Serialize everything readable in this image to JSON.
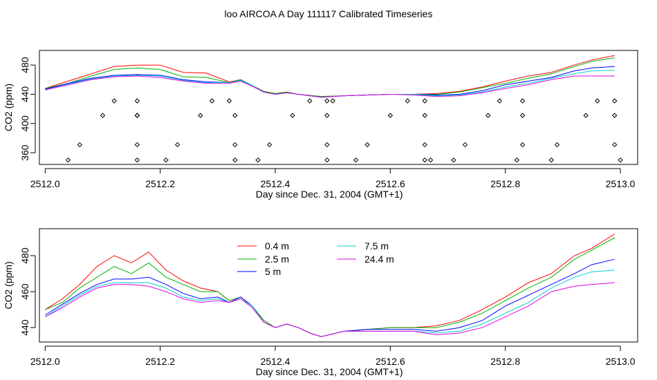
{
  "title": "loo AIRCOA A  Day 111117  Calibrated Timeseries",
  "chart_data": [
    {
      "type": "line",
      "xlabel": "Day since Dec. 31, 2004 (GMT+1)",
      "ylabel": "CO2 (ppm)",
      "xlim": [
        2511.99,
        2513.03
      ],
      "ylim": [
        344,
        500
      ],
      "xticks": [
        2512.0,
        2512.2,
        2512.4,
        2512.6,
        2512.8,
        2513.0
      ],
      "xtick_labels": [
        "2512.0",
        "2512.2",
        "2512.4",
        "2512.6",
        "2512.8",
        "2513.0"
      ],
      "yticks": [
        360,
        400,
        440,
        480
      ],
      "ytick_labels": [
        "360",
        "400",
        "440",
        "480"
      ],
      "grid": false,
      "legend": "none",
      "x": [
        2512.0,
        2512.04,
        2512.08,
        2512.12,
        2512.16,
        2512.2,
        2512.24,
        2512.28,
        2512.32,
        2512.34,
        2512.36,
        2512.38,
        2512.4,
        2512.42,
        2512.44,
        2512.48,
        2512.52,
        2512.56,
        2512.6,
        2512.64,
        2512.68,
        2512.72,
        2512.76,
        2512.8,
        2512.84,
        2512.88,
        2512.92,
        2512.95,
        2512.99
      ],
      "series": [
        {
          "color": "#ff0000",
          "values": [
            448,
            458,
            468,
            478,
            480,
            480,
            470,
            469,
            457,
            460,
            452,
            444,
            441,
            443,
            440,
            437,
            438,
            439,
            440,
            440,
            441,
            444,
            450,
            458,
            465,
            470,
            480,
            487,
            493
          ]
        },
        {
          "color": "#00b000",
          "values": [
            448,
            455,
            465,
            474,
            476,
            474,
            464,
            463,
            456,
            460,
            452,
            444,
            441,
            443,
            440,
            437,
            438,
            439,
            440,
            440,
            440,
            443,
            449,
            455,
            462,
            468,
            478,
            485,
            490
          ]
        },
        {
          "color": "#0000ff",
          "values": [
            447,
            455,
            462,
            466,
            467,
            466,
            460,
            457,
            456,
            459,
            452,
            443,
            440,
            442,
            440,
            436,
            438,
            439,
            440,
            440,
            439,
            440,
            445,
            453,
            458,
            463,
            472,
            476,
            478
          ]
        },
        {
          "color": "#00d0d0",
          "values": [
            446,
            454,
            461,
            465,
            466,
            465,
            459,
            456,
            456,
            459,
            452,
            443,
            440,
            442,
            440,
            436,
            438,
            439,
            440,
            440,
            438,
            439,
            443,
            450,
            455,
            462,
            468,
            472,
            473
          ]
        },
        {
          "color": "#e000e0",
          "values": [
            446,
            453,
            460,
            464,
            465,
            463,
            458,
            455,
            455,
            458,
            451,
            443,
            440,
            442,
            440,
            436,
            438,
            439,
            440,
            439,
            437,
            438,
            442,
            448,
            453,
            460,
            465,
            465,
            465
          ]
        }
      ],
      "points": {
        "marker": "diamond",
        "x": [
          2512.04,
          2512.06,
          2512.1,
          2512.12,
          2512.16,
          2512.16,
          2512.16,
          2512.16,
          2512.16,
          2512.21,
          2512.23,
          2512.27,
          2512.29,
          2512.32,
          2512.33,
          2512.33,
          2512.33,
          2512.37,
          2512.39,
          2512.43,
          2512.46,
          2512.49,
          2512.49,
          2512.49,
          2512.49,
          2512.5,
          2512.54,
          2512.56,
          2512.6,
          2512.63,
          2512.66,
          2512.66,
          2512.66,
          2512.66,
          2512.67,
          2512.71,
          2512.73,
          2512.77,
          2512.79,
          2512.82,
          2512.83,
          2512.83,
          2512.83,
          2512.88,
          2512.89,
          2512.94,
          2512.96,
          2512.99,
          2512.99,
          2512.99,
          2513.0
        ],
        "y": [
          350,
          371,
          411,
          431,
          350,
          371,
          411,
          431,
          411,
          350,
          371,
          411,
          431,
          431,
          411,
          371,
          350,
          350,
          371,
          411,
          431,
          350,
          371,
          411,
          431,
          431,
          350,
          371,
          411,
          431,
          431,
          411,
          371,
          350,
          350,
          350,
          371,
          411,
          431,
          350,
          371,
          411,
          431,
          350,
          371,
          411,
          431,
          431,
          411,
          371,
          350
        ]
      }
    },
    {
      "type": "line",
      "xlabel": "Day since Dec. 31, 2004 (GMT+1)",
      "ylabel": "CO2 (ppm)",
      "xlim": [
        2511.99,
        2513.03
      ],
      "ylim": [
        432,
        495
      ],
      "xticks": [
        2512.0,
        2512.2,
        2512.4,
        2512.6,
        2512.8,
        2513.0
      ],
      "xtick_labels": [
        "2512.0",
        "2512.2",
        "2512.4",
        "2512.6",
        "2512.8",
        "2513.0"
      ],
      "yticks": [
        440,
        460,
        480
      ],
      "ytick_labels": [
        "440",
        "460",
        "480"
      ],
      "grid": false,
      "legend": "top-left",
      "x": [
        2512.0,
        2512.03,
        2512.06,
        2512.09,
        2512.12,
        2512.15,
        2512.18,
        2512.21,
        2512.24,
        2512.27,
        2512.3,
        2512.32,
        2512.34,
        2512.36,
        2512.38,
        2512.4,
        2512.42,
        2512.44,
        2512.46,
        2512.48,
        2512.52,
        2512.56,
        2512.6,
        2512.64,
        2512.68,
        2512.72,
        2512.76,
        2512.8,
        2512.84,
        2512.88,
        2512.92,
        2512.95,
        2512.99
      ],
      "series": [
        {
          "name": "0.4 m",
          "color": "#ff0000",
          "values": [
            450,
            456,
            464,
            474,
            480,
            476,
            482,
            472,
            466,
            462,
            460,
            455,
            457,
            452,
            444,
            440,
            442,
            440,
            437,
            435,
            438,
            439,
            440,
            440,
            441,
            444,
            450,
            457,
            465,
            470,
            480,
            484,
            492
          ]
        },
        {
          "name": "2.5 m",
          "color": "#00b000",
          "values": [
            450,
            454,
            462,
            468,
            474,
            470,
            476,
            468,
            464,
            460,
            460,
            455,
            457,
            452,
            444,
            440,
            442,
            440,
            437,
            435,
            438,
            439,
            440,
            440,
            440,
            443,
            448,
            455,
            462,
            468,
            478,
            483,
            490
          ]
        },
        {
          "name": "5 m",
          "color": "#0000ff",
          "values": [
            447,
            453,
            459,
            464,
            467,
            467,
            468,
            464,
            459,
            456,
            457,
            454,
            457,
            452,
            443,
            440,
            442,
            440,
            437,
            435,
            438,
            439,
            439,
            439,
            438,
            440,
            444,
            452,
            458,
            464,
            470,
            475,
            478
          ]
        },
        {
          "name": "7.5 m",
          "color": "#00d0d0",
          "values": [
            446,
            452,
            458,
            463,
            465,
            465,
            465,
            462,
            457,
            455,
            456,
            454,
            456,
            452,
            443,
            440,
            442,
            440,
            437,
            435,
            438,
            438,
            438,
            438,
            437,
            438,
            442,
            448,
            454,
            462,
            468,
            471,
            472
          ]
        },
        {
          "name": "24.4 m",
          "color": "#e000e0",
          "values": [
            446,
            451,
            457,
            462,
            464,
            464,
            463,
            460,
            456,
            454,
            455,
            454,
            456,
            451,
            443,
            440,
            442,
            440,
            437,
            435,
            438,
            438,
            438,
            438,
            436,
            437,
            440,
            446,
            452,
            460,
            463,
            464,
            465
          ]
        }
      ]
    }
  ]
}
